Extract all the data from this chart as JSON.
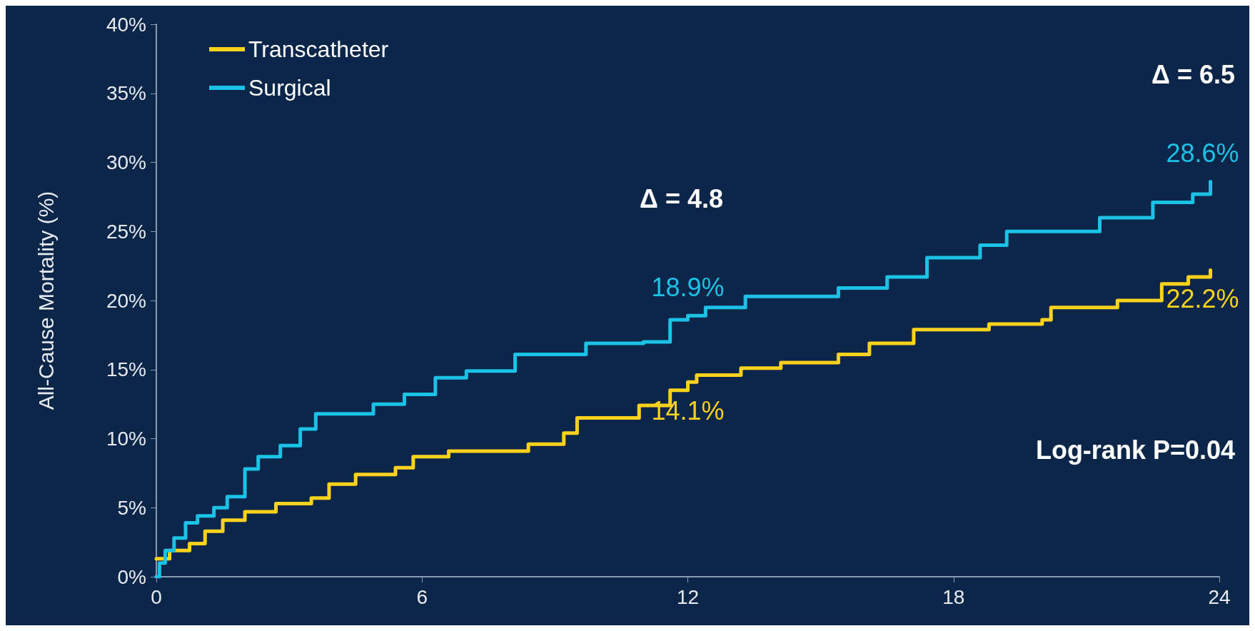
{
  "chart_data": {
    "type": "step",
    "ylabel": "All-Cause Mortality (%)",
    "xlim": [
      0,
      24
    ],
    "xticks": [
      0,
      6,
      12,
      18,
      24
    ],
    "ylim": [
      0,
      40
    ],
    "yticks": [
      {
        "value": 0,
        "label": "0%"
      },
      {
        "value": 5,
        "label": "5%"
      },
      {
        "value": 10,
        "label": "10%"
      },
      {
        "value": 15,
        "label": "15%"
      },
      {
        "value": 20,
        "label": "20%"
      },
      {
        "value": 25,
        "label": "25%"
      },
      {
        "value": 30,
        "label": "30%"
      },
      {
        "value": 35,
        "label": "35%"
      },
      {
        "value": 40,
        "label": "40%"
      }
    ],
    "grid": false,
    "legend": "top left",
    "marker": "none",
    "line_style": "solid",
    "series": [
      {
        "name": "Transcatheter",
        "color": "#fcd21c",
        "x": [
          0,
          0.3,
          0.75,
          1.1,
          1.5,
          2.0,
          2.7,
          3.5,
          3.9,
          4.5,
          5.4,
          5.8,
          6.6,
          7.9,
          8.4,
          9.2,
          9.5,
          10.9,
          11.6,
          12.0,
          12.2,
          13.2,
          14.1,
          15.4,
          16.1,
          17.1,
          18.8,
          20.0,
          20.2,
          21.7,
          22.7,
          23.3,
          23.8
        ],
        "values": [
          1.3,
          1.9,
          2.4,
          3.3,
          4.1,
          4.7,
          5.3,
          5.7,
          6.7,
          7.4,
          7.9,
          8.7,
          9.1,
          9.1,
          9.6,
          10.4,
          11.5,
          12.4,
          13.5,
          14.1,
          14.6,
          15.1,
          15.5,
          16.1,
          16.9,
          17.9,
          18.3,
          18.6,
          19.5,
          20.0,
          21.2,
          21.7,
          22.2
        ],
        "value_labels": [
          null,
          null,
          null,
          null,
          null,
          null,
          null,
          null,
          null,
          null,
          null,
          null,
          null,
          null,
          null,
          null,
          null,
          null,
          null,
          "14.1%",
          null,
          null,
          null,
          null,
          null,
          null,
          null,
          null,
          null,
          null,
          null,
          null,
          "22.2%"
        ]
      },
      {
        "name": "Surgical",
        "color": "#1cc1e6",
        "x": [
          0,
          0.07,
          0.2,
          0.4,
          0.66,
          0.93,
          1.3,
          1.6,
          2.0,
          2.3,
          2.8,
          3.25,
          3.6,
          4.9,
          5.6,
          6.3,
          7.0,
          8.1,
          9.7,
          11.0,
          11.6,
          12.0,
          12.4,
          13.3,
          15.4,
          16.5,
          17.4,
          18.6,
          19.2,
          20.6,
          21.3,
          22.3,
          22.5,
          23.4,
          23.8
        ],
        "values": [
          0,
          1.0,
          1.9,
          2.8,
          3.9,
          4.4,
          5.0,
          5.8,
          7.8,
          8.7,
          9.5,
          10.7,
          11.8,
          12.5,
          13.2,
          14.4,
          14.9,
          16.1,
          16.9,
          17.0,
          18.6,
          18.9,
          19.5,
          20.3,
          20.9,
          21.7,
          23.1,
          24.0,
          25.0,
          25.0,
          26.0,
          26.0,
          27.1,
          27.7,
          28.6
        ],
        "value_labels": [
          null,
          null,
          null,
          null,
          null,
          null,
          null,
          null,
          null,
          null,
          null,
          null,
          null,
          null,
          null,
          null,
          null,
          null,
          null,
          null,
          null,
          "18.9%",
          null,
          null,
          null,
          null,
          null,
          null,
          null,
          null,
          null,
          null,
          null,
          null,
          "28.6%"
        ]
      }
    ],
    "annotations": [
      "Δ = 4.8",
      "Δ = 6.5",
      "Log-rank P=0.04"
    ]
  }
}
